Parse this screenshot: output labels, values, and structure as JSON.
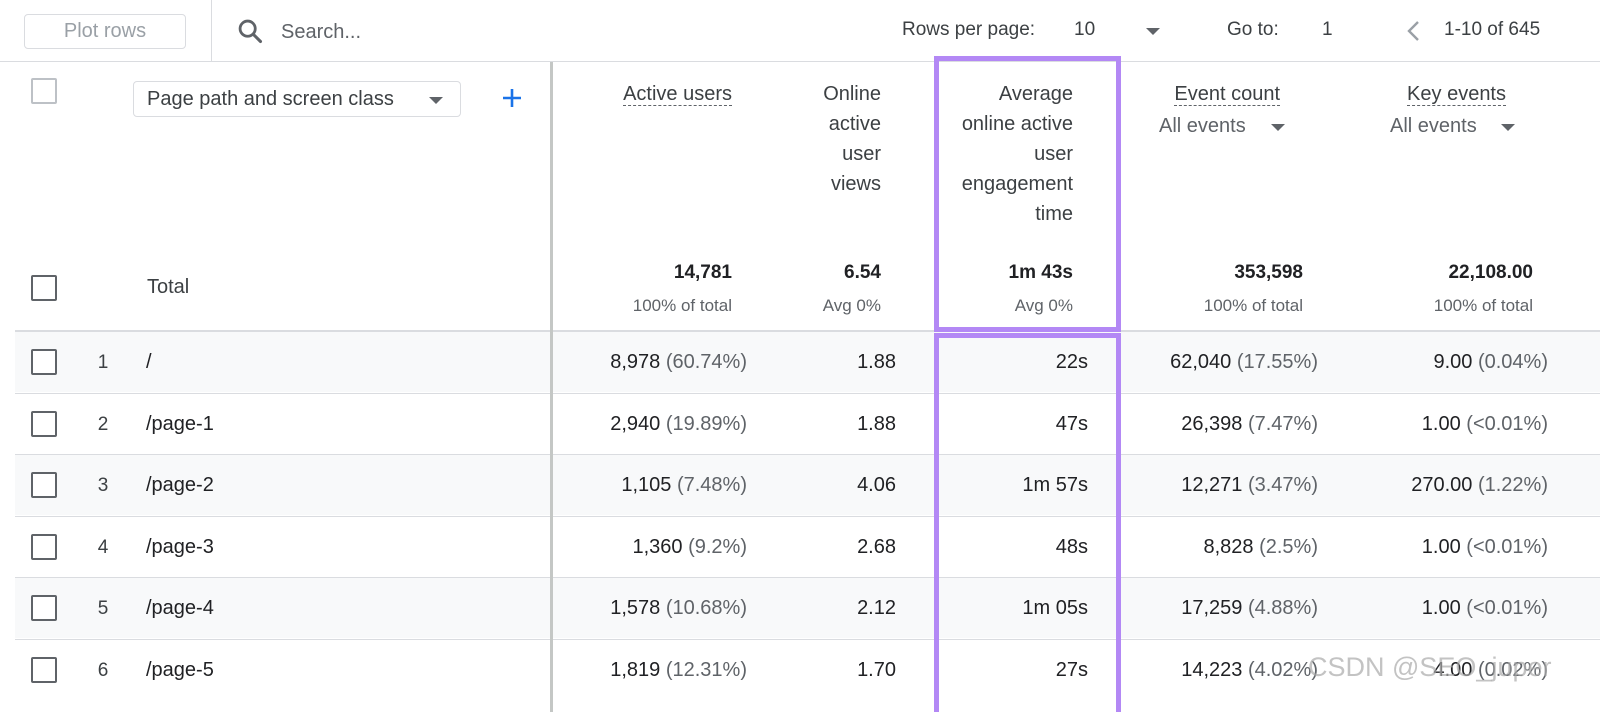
{
  "toolbar": {
    "plot_rows_label": "Plot rows",
    "search_placeholder": "Search...",
    "rows_per_page_label": "Rows per page:",
    "rows_per_page_value": "10",
    "go_to_label": "Go to:",
    "go_to_value": "1",
    "range_label": "1-10 of 645"
  },
  "header": {
    "dimension_select": "Page path and screen class",
    "columns": [
      {
        "label_lines": [
          "Active users"
        ],
        "sub": ""
      },
      {
        "label_lines": [
          "Online",
          "active",
          "user",
          "views"
        ],
        "sub": ""
      },
      {
        "label_lines": [
          "Average",
          "online active",
          "user",
          "engagement",
          "time"
        ],
        "sub": ""
      },
      {
        "label_lines": [
          "Event count"
        ],
        "sub": "All events"
      },
      {
        "label_lines": [
          "Key events"
        ],
        "sub": "All events"
      }
    ]
  },
  "total": {
    "label": "Total",
    "values": [
      {
        "main": "14,781",
        "sub": "100% of total"
      },
      {
        "main": "6.54",
        "sub": "Avg 0%"
      },
      {
        "main": "1m 43s",
        "sub": "Avg 0%"
      },
      {
        "main": "353,598",
        "sub": "100% of total"
      },
      {
        "main": "22,108.00",
        "sub": "100% of total"
      }
    ]
  },
  "rows": [
    {
      "index": "1",
      "path": "/",
      "active": "8,978",
      "active_pct": "(60.74%)",
      "views": "1.88",
      "time": "22s",
      "events": "62,040",
      "events_pct": "(17.55%)",
      "key": "9.00",
      "key_pct": "(0.04%)"
    },
    {
      "index": "2",
      "path": "/page-1",
      "active": "2,940",
      "active_pct": "(19.89%)",
      "views": "1.88",
      "time": "47s",
      "events": "26,398",
      "events_pct": "(7.47%)",
      "key": "1.00",
      "key_pct": "(<0.01%)"
    },
    {
      "index": "3",
      "path": "/page-2",
      "active": "1,105",
      "active_pct": "(7.48%)",
      "views": "4.06",
      "time": "1m 57s",
      "events": "12,271",
      "events_pct": "(3.47%)",
      "key": "270.00",
      "key_pct": "(1.22%)"
    },
    {
      "index": "4",
      "path": "/page-3",
      "active": "1,360",
      "active_pct": "(9.2%)",
      "views": "2.68",
      "time": "48s",
      "events": "8,828",
      "events_pct": "(2.5%)",
      "key": "1.00",
      "key_pct": "(<0.01%)"
    },
    {
      "index": "5",
      "path": "/page-4",
      "active": "1,578",
      "active_pct": "(10.68%)",
      "views": "2.12",
      "time": "1m 05s",
      "events": "17,259",
      "events_pct": "(4.88%)",
      "key": "1.00",
      "key_pct": "(<0.01%)"
    },
    {
      "index": "6",
      "path": "/page-5",
      "active": "1,819",
      "active_pct": "(12.31%)",
      "views": "1.70",
      "time": "27s",
      "events": "14,223",
      "events_pct": "(4.02%)",
      "key": "4.00",
      "key_pct": "(0.02%)"
    }
  ],
  "watermark": "CSDN @SEO_juper",
  "icons": {
    "search": "search-icon",
    "add": "plus-icon",
    "prev": "chevron-left-icon",
    "dropdown": "caret-down-icon"
  },
  "colors": {
    "highlight": "#b388f5",
    "accent": "#1a73e8",
    "row_shade": "#f8f9fa"
  }
}
